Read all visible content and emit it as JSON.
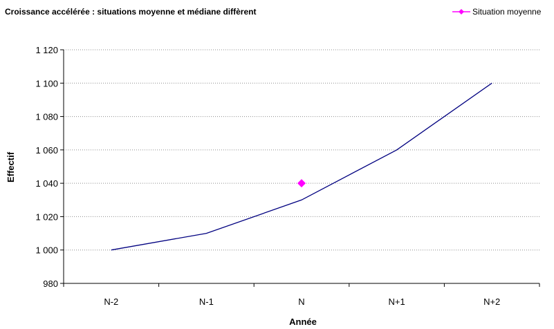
{
  "chart_data": {
    "type": "line",
    "title": "Croissance accélérée : situations moyenne et médiane diffèrent",
    "xlabel": "Année",
    "ylabel": "Effectif",
    "categories": [
      "N-2",
      "N-1",
      "N",
      "N+1",
      "N+2"
    ],
    "ylim": [
      980,
      1120
    ],
    "yticks": [
      980,
      1000,
      1020,
      1040,
      1060,
      1080,
      1100,
      1120
    ],
    "ytick_labels": [
      "980",
      "1 000",
      "1 020",
      "1 040",
      "1 060",
      "1 080",
      "1 100",
      "1 120"
    ],
    "grid": true,
    "legend_position": "top-right",
    "series": [
      {
        "values": [
          1000,
          1010,
          1030,
          1060,
          1100
        ],
        "color": "#000080",
        "marker": "none"
      },
      {
        "name": "Situation moyenne",
        "points": [
          {
            "x": "N",
            "y": 1040
          }
        ],
        "color": "#ff00ff",
        "marker": "diamond"
      }
    ]
  }
}
